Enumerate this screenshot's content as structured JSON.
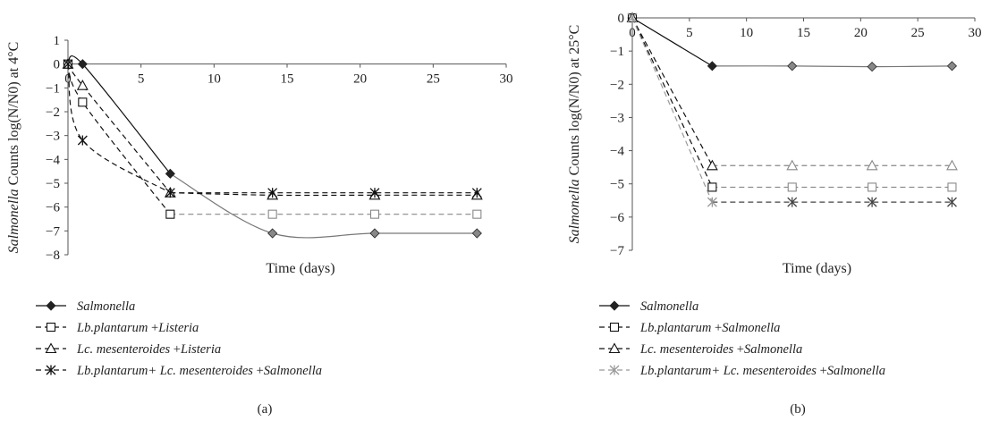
{
  "chart_data": [
    {
      "type": "line",
      "panel_label": "(a)",
      "xlabel": "Time (days)",
      "ylabel_italic": "Salmonella",
      "ylabel_rest": " Counts log(N/N0) at 4°C",
      "xlim": [
        0,
        30
      ],
      "ylim": [
        -8,
        1
      ],
      "xticks": [
        "0",
        "5",
        "10",
        "15",
        "20",
        "25",
        "30"
      ],
      "yticks": [
        "1",
        "0",
        "−1",
        "−2",
        "−3",
        "−4",
        "−5",
        "−6",
        "−7",
        "−8"
      ],
      "x": [
        0,
        1,
        7,
        14,
        21,
        28
      ],
      "series": [
        {
          "name": "Salmonella",
          "italic_part": "Salmonella",
          "plain_part": "",
          "values": [
            0,
            0,
            -4.6,
            -7.1,
            -7.1,
            -7.1
          ],
          "marker": "diamond",
          "color": "#111111",
          "line": "solid",
          "color_after": "#777777",
          "split_after_index": 2
        },
        {
          "name": "Lb.plantarum +Listeria",
          "italic_part": "Lb.plantarum",
          "plain_part": " +",
          "italic_tail": "Listeria",
          "values": [
            0,
            -1.6,
            -6.3,
            -6.3,
            -6.3,
            -6.3
          ],
          "marker": "square",
          "color": "#111111",
          "line": "dash",
          "color_after": "#888888",
          "split_after_index": 2
        },
        {
          "name": "Lc. mesenteroides +Listeria",
          "italic_part": "Lc. mesenteroides",
          "plain_part": " +",
          "italic_tail": "Listeria",
          "values": [
            0,
            -0.9,
            -5.4,
            -5.5,
            -5.5,
            -5.5
          ],
          "marker": "triangle",
          "color": "#111111",
          "line": "dash",
          "color_after": "#111111",
          "split_after_index": 2
        },
        {
          "name": "Lb.plantarum+ Lc. mesenteroides +Salmonella",
          "italic_part": "Lb.plantarum+ Lc. mesenteroides",
          "plain_part": " +",
          "italic_tail": "Salmonella",
          "values": [
            0,
            -3.2,
            -5.4,
            -5.4,
            -5.4,
            -5.4
          ],
          "marker": "star",
          "color": "#111111",
          "line": "dash",
          "color_after": "#111111",
          "split_after_index": 2
        }
      ]
    },
    {
      "type": "line",
      "panel_label": "(b)",
      "xlabel": "Time (days)",
      "ylabel_italic": "Salmonella",
      "ylabel_rest": " Counts log(N/N0) at 25°C",
      "xlim": [
        0,
        30
      ],
      "ylim": [
        -7,
        0
      ],
      "xticks": [
        "0",
        "5",
        "10",
        "15",
        "20",
        "25",
        "30"
      ],
      "yticks": [
        "0",
        "−1",
        "−2",
        "−3",
        "−4",
        "−5",
        "−6",
        "−7"
      ],
      "x": [
        0,
        7,
        14,
        21,
        28
      ],
      "series": [
        {
          "name": "Salmonella",
          "italic_part": "Salmonella",
          "plain_part": "",
          "values": [
            0,
            -1.45,
            -1.45,
            -1.47,
            -1.45
          ],
          "marker": "diamond",
          "color": "#111111",
          "line": "solid",
          "color_after": "#777777",
          "split_after_index": 1
        },
        {
          "name": "Lb.plantarum +Salmonella",
          "italic_part": "Lb.plantarum",
          "plain_part": " +",
          "italic_tail": "Salmonella",
          "values": [
            0,
            -5.1,
            -5.1,
            -5.1,
            -5.1
          ],
          "marker": "square",
          "color": "#111111",
          "line": "dash",
          "color_after": "#888888",
          "split_after_index": 1
        },
        {
          "name": "Lc. mesenteroides +Salmonella",
          "italic_part": "Lc. mesenteroides",
          "plain_part": " +",
          "italic_tail": "Salmonella",
          "values": [
            0,
            -4.45,
            -4.45,
            -4.45,
            -4.45
          ],
          "marker": "triangle",
          "color": "#111111",
          "line": "dash",
          "color_after": "#888888",
          "split_after_index": 1
        },
        {
          "name": "Lb.plantarum+ Lc. mesenteroides +Salmonella",
          "italic_part": "Lb.plantarum+ Lc. mesenteroides",
          "plain_part": " +",
          "italic_tail": "Salmonella",
          "values": [
            0,
            -5.55,
            -5.55,
            -5.55,
            -5.55
          ],
          "marker": "star",
          "color": "#999999",
          "line": "dash",
          "color_after": "#444444",
          "split_after_index": 1
        }
      ]
    }
  ]
}
